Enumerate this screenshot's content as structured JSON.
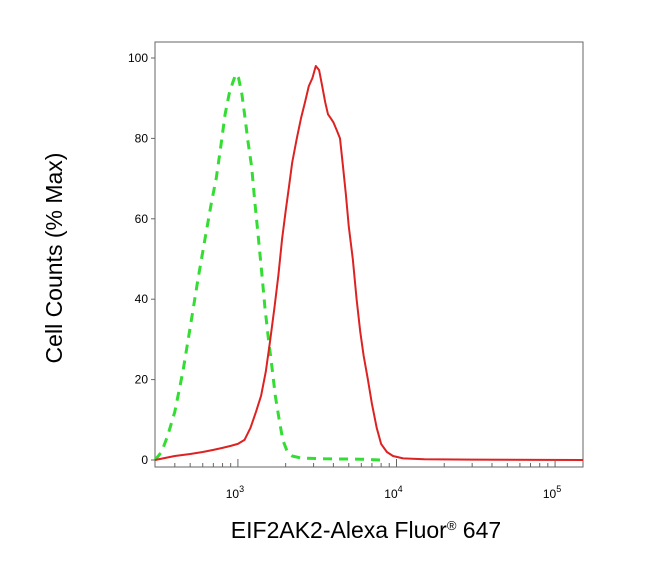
{
  "chart_data": {
    "type": "line",
    "xlabel": {
      "text": "EIF2AK2-Alexa Fluor",
      "mark": "®",
      "suffix": " 647"
    },
    "ylabel": "Cell Counts (% Max)",
    "x_scale": "log",
    "xlim": [
      300,
      150000
    ],
    "ylim": [
      0,
      100
    ],
    "x_ticks": [
      {
        "value": 1000,
        "base": "10",
        "exp": "3"
      },
      {
        "value": 10000,
        "base": "10",
        "exp": "4"
      },
      {
        "value": 100000,
        "base": "10",
        "exp": "5"
      }
    ],
    "y_ticks": [
      {
        "value": 0,
        "label": "0"
      },
      {
        "value": 20,
        "label": "20"
      },
      {
        "value": 40,
        "label": "40"
      },
      {
        "value": 60,
        "label": "60"
      },
      {
        "value": 80,
        "label": "80"
      },
      {
        "value": 100,
        "label": "100"
      }
    ],
    "grid": false,
    "series": [
      {
        "style": "dashed",
        "color": "#33dd33",
        "points": [
          [
            300,
            0
          ],
          [
            330,
            2
          ],
          [
            360,
            6
          ],
          [
            400,
            12
          ],
          [
            450,
            22
          ],
          [
            500,
            33
          ],
          [
            560,
            45
          ],
          [
            620,
            55
          ],
          [
            680,
            64
          ],
          [
            730,
            70
          ],
          [
            780,
            78
          ],
          [
            830,
            86
          ],
          [
            880,
            91
          ],
          [
            930,
            94
          ],
          [
            970,
            96
          ],
          [
            1010,
            95
          ],
          [
            1060,
            91
          ],
          [
            1110,
            85
          ],
          [
            1160,
            79
          ],
          [
            1220,
            73
          ],
          [
            1280,
            64
          ],
          [
            1340,
            56
          ],
          [
            1410,
            47
          ],
          [
            1480,
            38
          ],
          [
            1560,
            30
          ],
          [
            1640,
            23
          ],
          [
            1720,
            16
          ],
          [
            1820,
            10
          ],
          [
            1920,
            5
          ],
          [
            2050,
            2
          ],
          [
            2200,
            1
          ],
          [
            2500,
            0.5
          ],
          [
            3500,
            0.3
          ],
          [
            6000,
            0.2
          ],
          [
            8000,
            0
          ]
        ]
      },
      {
        "style": "solid",
        "color": "#dd2222",
        "points": [
          [
            300,
            0
          ],
          [
            400,
            1
          ],
          [
            500,
            1.5
          ],
          [
            600,
            2
          ],
          [
            700,
            2.5
          ],
          [
            800,
            3
          ],
          [
            900,
            3.5
          ],
          [
            1000,
            4
          ],
          [
            1100,
            5
          ],
          [
            1200,
            8
          ],
          [
            1300,
            12
          ],
          [
            1400,
            16
          ],
          [
            1500,
            22
          ],
          [
            1600,
            30
          ],
          [
            1700,
            38
          ],
          [
            1800,
            46
          ],
          [
            1900,
            55
          ],
          [
            2000,
            62
          ],
          [
            2100,
            68
          ],
          [
            2200,
            74
          ],
          [
            2350,
            80
          ],
          [
            2500,
            85
          ],
          [
            2650,
            89
          ],
          [
            2800,
            93
          ],
          [
            2950,
            95
          ],
          [
            3100,
            98
          ],
          [
            3250,
            97
          ],
          [
            3400,
            93
          ],
          [
            3550,
            89
          ],
          [
            3700,
            86
          ],
          [
            3850,
            85
          ],
          [
            4000,
            84
          ],
          [
            4200,
            82
          ],
          [
            4400,
            80
          ],
          [
            4600,
            73
          ],
          [
            4800,
            66
          ],
          [
            5000,
            58
          ],
          [
            5300,
            50
          ],
          [
            5600,
            40
          ],
          [
            5900,
            32
          ],
          [
            6200,
            26
          ],
          [
            6600,
            20
          ],
          [
            7000,
            14
          ],
          [
            7500,
            8
          ],
          [
            8000,
            4
          ],
          [
            8700,
            2
          ],
          [
            9500,
            1
          ],
          [
            11000,
            0.4
          ],
          [
            15000,
            0.2
          ],
          [
            30000,
            0.1
          ],
          [
            150000,
            0
          ]
        ]
      }
    ]
  },
  "colors": {
    "axis": "#555555",
    "background": "#ffffff"
  }
}
